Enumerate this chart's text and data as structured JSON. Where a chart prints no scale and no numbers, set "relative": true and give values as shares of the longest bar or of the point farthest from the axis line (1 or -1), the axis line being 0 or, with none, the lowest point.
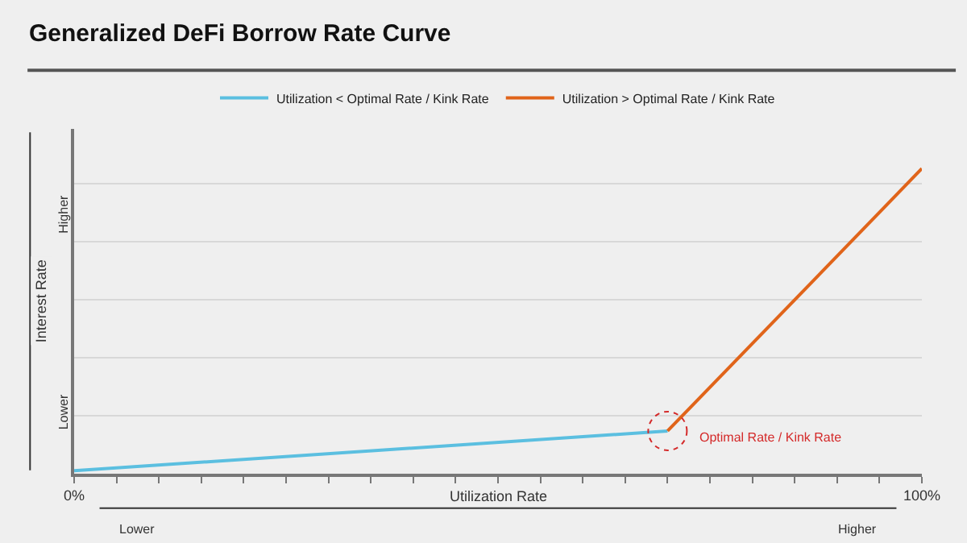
{
  "chart_data": {
    "type": "line",
    "title": "Generalized DeFi Borrow Rate Curve",
    "xlabel": "Utilization Rate",
    "ylabel": "Interest Rate",
    "relative": true,
    "xlim": [
      0,
      100
    ],
    "xticks": [
      {
        "value": 0,
        "label": "0%"
      },
      {
        "value": 5,
        "label": null
      },
      {
        "value": 10,
        "label": null
      },
      {
        "value": 15,
        "label": null
      },
      {
        "value": 20,
        "label": null
      },
      {
        "value": 25,
        "label": null
      },
      {
        "value": 30,
        "label": null
      },
      {
        "value": 35,
        "label": null
      },
      {
        "value": 40,
        "label": null
      },
      {
        "value": 45,
        "label": null
      },
      {
        "value": 50,
        "label": null
      },
      {
        "value": 55,
        "label": null
      },
      {
        "value": 60,
        "label": null
      },
      {
        "value": 65,
        "label": null
      },
      {
        "value": 70,
        "label": null
      },
      {
        "value": 75,
        "label": null
      },
      {
        "value": 80,
        "label": null
      },
      {
        "value": 85,
        "label": null
      },
      {
        "value": 90,
        "label": null
      },
      {
        "value": 95,
        "label": null
      },
      {
        "value": 100,
        "label": "100%"
      }
    ],
    "series": [
      {
        "name": "Utilization < Optimal Rate / Kink Rate",
        "color": "#5bbfe0",
        "x": [
          0,
          70
        ],
        "values": [
          0.01,
          0.14
        ]
      },
      {
        "name": "Utilization > Optimal Rate / Kink Rate",
        "color": "#e0641a",
        "x": [
          70,
          100
        ],
        "values": [
          0.14,
          1
        ]
      }
    ],
    "annotations": [
      {
        "text": "Optimal Rate / Kink Rate",
        "x": 70,
        "y": 0.14
      },
      "Higher",
      "Lower",
      "Lower",
      "Higher"
    ],
    "grid": "y",
    "legend": "top",
    "line_style": "solid"
  }
}
